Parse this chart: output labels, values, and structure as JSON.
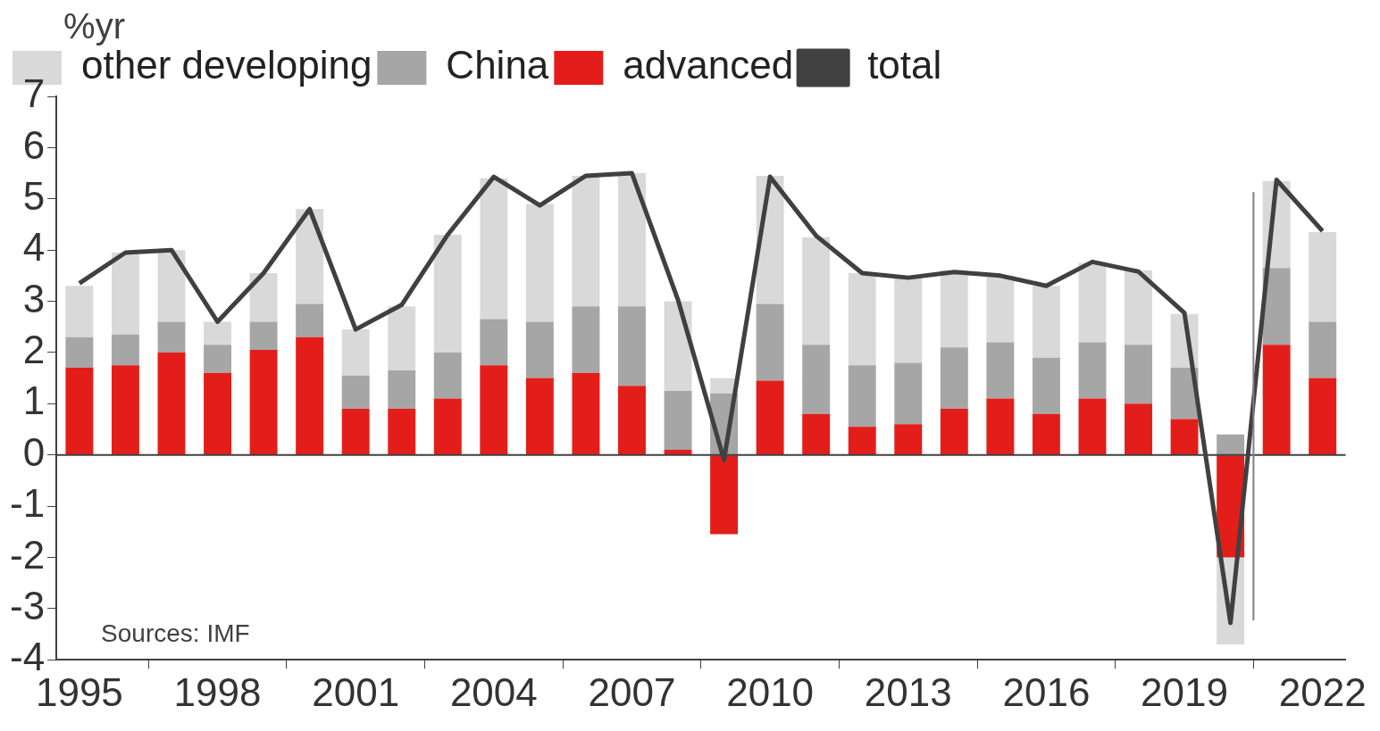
{
  "chart_data": {
    "type": "bar",
    "stacked": true,
    "ylabel": "%yr",
    "x": [
      1995,
      1996,
      1997,
      1998,
      1999,
      2000,
      2001,
      2002,
      2003,
      2004,
      2005,
      2006,
      2007,
      2008,
      2009,
      2010,
      2011,
      2012,
      2013,
      2014,
      2015,
      2016,
      2017,
      2018,
      2019,
      2020,
      2021,
      2022
    ],
    "xlim": [
      1994.5,
      2022.5
    ],
    "xticks": [
      1995,
      1998,
      2001,
      2004,
      2007,
      2010,
      2013,
      2016,
      2019,
      2022
    ],
    "ylim": [
      -4,
      7
    ],
    "yticks": [
      -4,
      -3,
      -2,
      -1,
      0,
      1,
      2,
      3,
      4,
      5,
      6,
      7
    ],
    "series": [
      {
        "name": "advanced",
        "color": "#e31e1a",
        "values": [
          1.7,
          1.75,
          2.0,
          1.6,
          2.05,
          2.3,
          0.9,
          0.9,
          1.1,
          1.75,
          1.5,
          1.6,
          1.35,
          0.1,
          -1.55,
          1.45,
          0.8,
          0.55,
          0.6,
          0.9,
          1.1,
          0.8,
          1.1,
          1.0,
          0.7,
          -2.0,
          2.15,
          1.5
        ]
      },
      {
        "name": "China",
        "color": "#a6a6a6",
        "values": [
          0.6,
          0.6,
          0.6,
          0.55,
          0.55,
          0.65,
          0.65,
          0.75,
          0.9,
          0.9,
          1.1,
          1.3,
          1.55,
          1.15,
          1.2,
          1.5,
          1.35,
          1.2,
          1.2,
          1.2,
          1.1,
          1.1,
          1.1,
          1.15,
          1.0,
          0.4,
          1.5,
          1.1
        ]
      },
      {
        "name": "other developing",
        "color": "#d9d9d9",
        "values": [
          1.0,
          1.6,
          1.4,
          0.45,
          0.95,
          1.85,
          0.9,
          1.25,
          2.3,
          2.75,
          2.3,
          2.55,
          2.6,
          1.75,
          0.3,
          2.5,
          2.1,
          1.8,
          1.65,
          1.5,
          1.3,
          1.4,
          1.55,
          1.45,
          1.05,
          -1.7,
          1.7,
          1.75
        ]
      },
      {
        "name": "total",
        "type": "line",
        "color": "#404040",
        "values": [
          3.35,
          3.95,
          4.0,
          2.6,
          3.55,
          4.8,
          2.45,
          2.93,
          4.3,
          5.43,
          4.87,
          5.45,
          5.5,
          3.03,
          -0.1,
          5.43,
          4.28,
          3.55,
          3.46,
          3.57,
          3.5,
          3.3,
          3.77,
          3.58,
          2.77,
          -3.28,
          5.37,
          4.37
        ]
      }
    ],
    "ref_lines": [
      {
        "axis": "y",
        "value": 0,
        "color": "#404040"
      },
      {
        "axis": "x",
        "value": 2020.5,
        "color": "#808080"
      }
    ],
    "legend": "top left",
    "grid": false,
    "marker": "none",
    "annotations": [
      "Sources: IMF"
    ]
  }
}
